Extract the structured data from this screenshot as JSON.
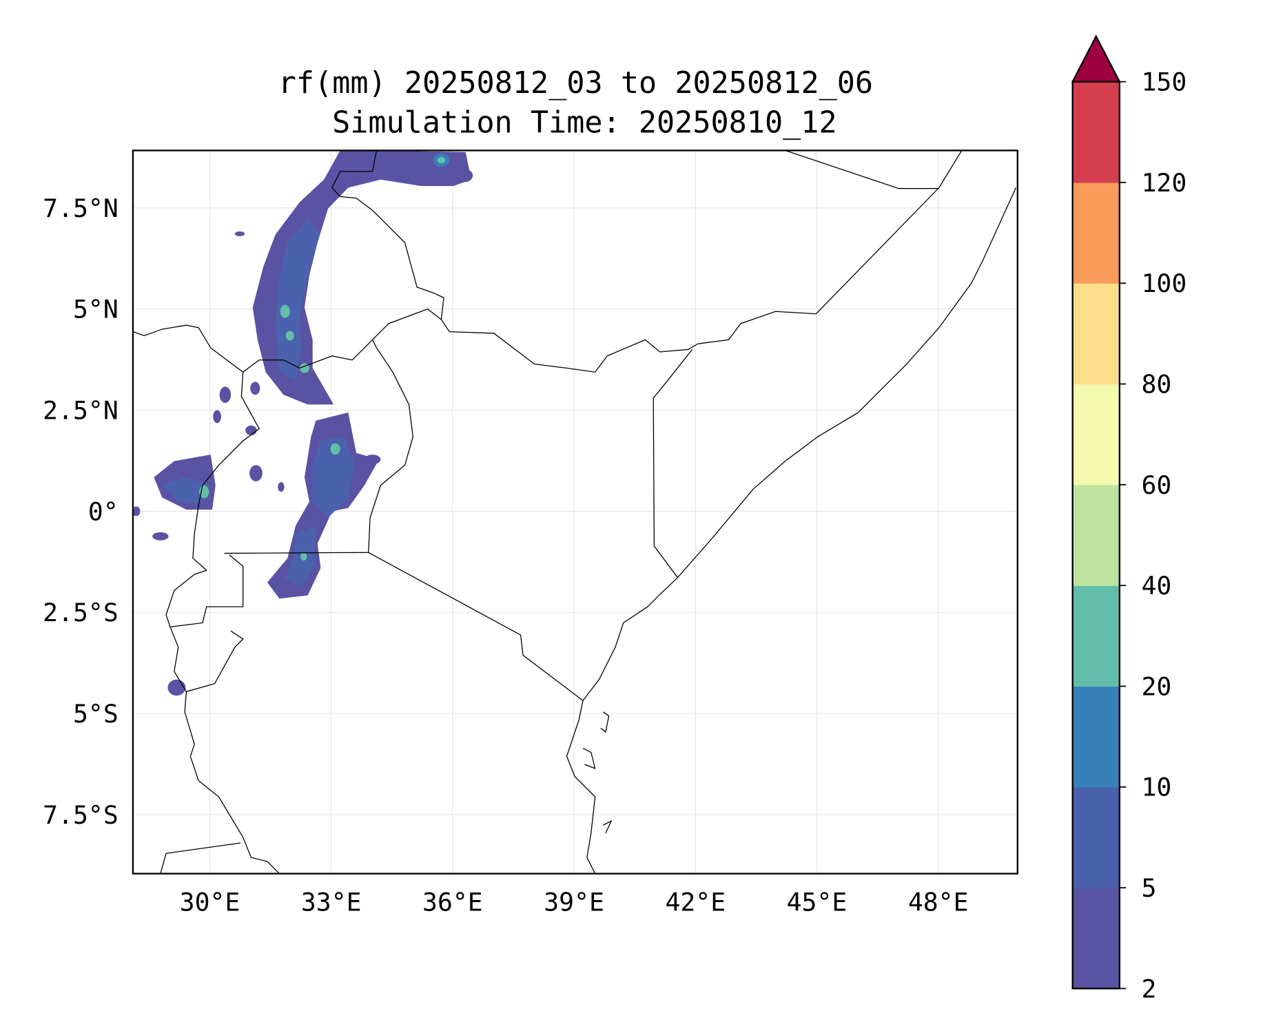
{
  "chart_data": {
    "type": "heatmap",
    "subtype": "filled-contour map",
    "title": "rf(mm) 20250812_03 to 20250812_06",
    "subtitle": "Simulation Time: 20250810_12",
    "xlim": [
      28.1,
      49.9
    ],
    "ylim": [
      -8.9,
      8.9
    ],
    "grid": true,
    "xticks": [
      {
        "value": 30,
        "label": "30°E"
      },
      {
        "value": 33,
        "label": "33°E"
      },
      {
        "value": 36,
        "label": "36°E"
      },
      {
        "value": 39,
        "label": "39°E"
      },
      {
        "value": 42,
        "label": "42°E"
      },
      {
        "value": 45,
        "label": "45°E"
      },
      {
        "value": 48,
        "label": "48°E"
      }
    ],
    "yticks": [
      {
        "value": 7.5,
        "label": "7.5°N"
      },
      {
        "value": 5,
        "label": "5°N"
      },
      {
        "value": 2.5,
        "label": "2.5°N"
      },
      {
        "value": 0,
        "label": "0°"
      },
      {
        "value": -2.5,
        "label": "2.5°S"
      },
      {
        "value": -5,
        "label": "5°S"
      },
      {
        "value": -7.5,
        "label": "7.5°S"
      }
    ],
    "colorbar": {
      "levels": [
        2,
        5,
        10,
        20,
        40,
        60,
        80,
        100,
        120,
        150
      ],
      "labels": [
        "2",
        "5",
        "10",
        "20",
        "40",
        "60",
        "80",
        "100",
        "120",
        "150"
      ],
      "colors": [
        "#5a52a3",
        "#4a62ad",
        "#3780b9",
        "#63bea9",
        "#bee4a0",
        "#f3f9ad",
        "#fcde8b",
        "#f99c5a",
        "#d53e4f"
      ],
      "extend_color": "#9e0142",
      "extend": "max"
    }
  }
}
